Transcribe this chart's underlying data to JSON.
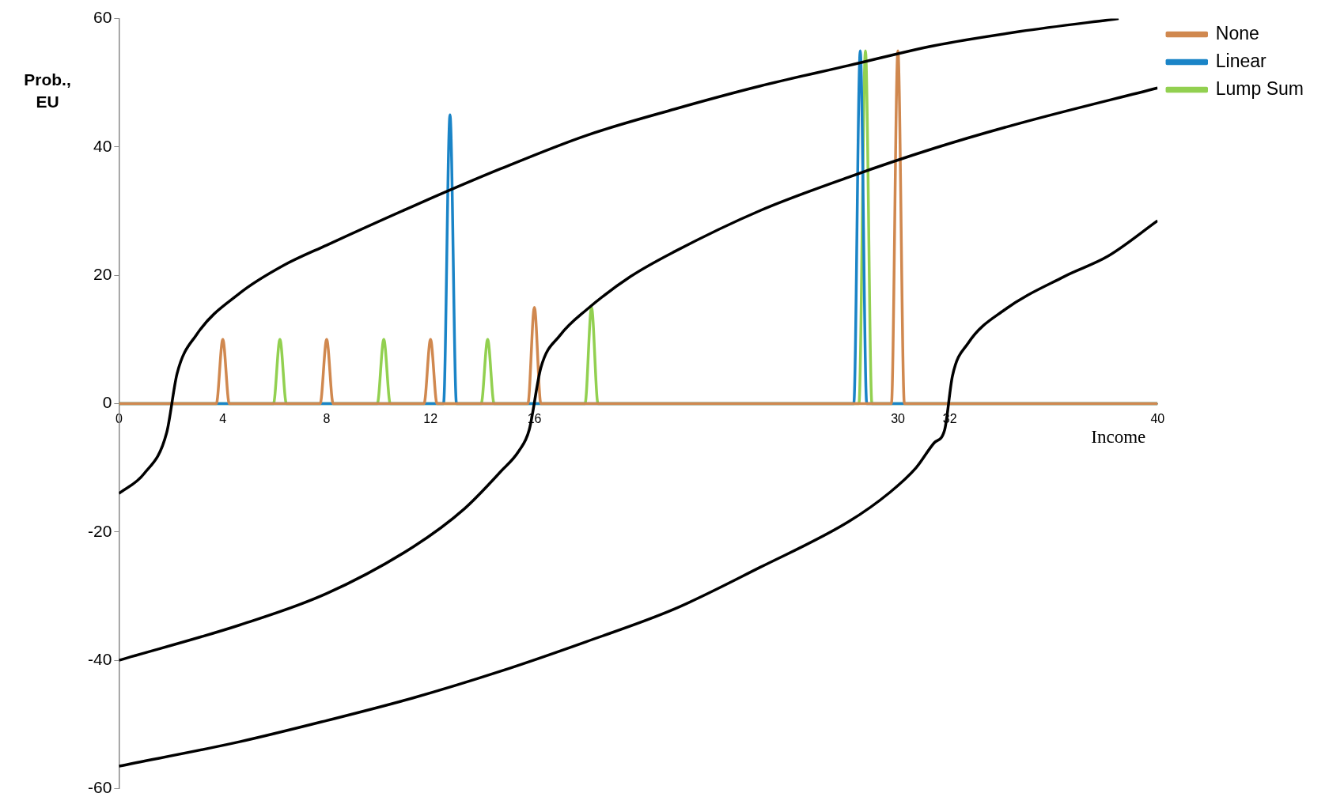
{
  "chart_data": {
    "type": "line",
    "xlabel": "Income",
    "ylabel": "Prob., EU",
    "xlim": [
      0,
      40
    ],
    "xticks": [
      0,
      4,
      8,
      12,
      16,
      30,
      32,
      40
    ],
    "ylim": [
      -60,
      60
    ],
    "yticks": [
      -60,
      -40,
      -20,
      0,
      20,
      40,
      60
    ],
    "grid": false,
    "legend": "right",
    "marker": "none",
    "series": [
      {
        "color": "#000000",
        "x": [
          0,
          0.97,
          1.84,
          2.24,
          2.98,
          4.65,
          6.32,
          8,
          11.34,
          14.7,
          18,
          21.4,
          24.7,
          28.1,
          31.4,
          34.7,
          38.1,
          38.5
        ],
        "values": [
          -14,
          -10.9,
          -4.5,
          4.7,
          10.7,
          17.2,
          21.5,
          24.7,
          30.8,
          36.6,
          41.8,
          45.9,
          49.5,
          52.7,
          55.8,
          58,
          59.8,
          60
        ]
      },
      {
        "color": "#000000",
        "x": [
          0,
          4.65,
          8,
          11.34,
          13.3,
          14.7,
          15.4,
          15.8,
          16.25,
          17,
          18,
          19.7,
          21.4,
          24.7,
          28.1,
          31.4,
          34.7,
          40
        ],
        "values": [
          -40,
          -34.5,
          -29.6,
          -22.3,
          -16.4,
          -10.6,
          -7.4,
          -4.1,
          5.6,
          10.7,
          14.6,
          19.8,
          23.7,
          30.1,
          35.3,
          39.8,
          43.7,
          49.2
        ]
      },
      {
        "color": "#000000",
        "x": [
          0,
          4.65,
          8,
          11.3,
          14.7,
          18,
          21.4,
          24.7,
          28.1,
          29.7,
          30.7,
          31.4,
          31.8,
          32.1,
          32.7,
          34.1,
          36.4,
          38.1,
          40
        ],
        "values": [
          -56.5,
          -52.7,
          -49.4,
          -45.9,
          -41.7,
          -37.1,
          -32,
          -25.5,
          -18.4,
          -13.8,
          -10,
          -6.1,
          -4.1,
          4.3,
          9.4,
          14.6,
          19.8,
          23,
          28.5
        ]
      },
      {
        "name": "None",
        "color": "#d0884f",
        "x": [
          0,
          3.75,
          4,
          4.25,
          7.75,
          8,
          8.25,
          11.75,
          12,
          12.25,
          15.75,
          16,
          16.25,
          29.75,
          30,
          30.25,
          40
        ],
        "values": [
          0,
          0,
          10,
          0,
          0,
          10,
          0,
          0,
          10,
          0,
          0,
          15,
          0,
          0,
          55,
          0,
          0
        ]
      },
      {
        "name": "Linear",
        "color": "#1a84c7",
        "x": [
          0,
          12.5,
          12.75,
          13,
          28.3,
          28.55,
          28.8,
          40
        ],
        "values": [
          0,
          0,
          45,
          0,
          0,
          55,
          0,
          0
        ]
      },
      {
        "name": "Lump Sum",
        "color": "#92d050",
        "x": [
          0,
          5.95,
          6.2,
          6.45,
          9.95,
          10.2,
          10.45,
          13.95,
          14.2,
          14.45,
          17.95,
          18.2,
          18.45,
          28.5,
          28.75,
          29,
          40
        ],
        "values": [
          0,
          0,
          10,
          0,
          0,
          10,
          0,
          0,
          10,
          0,
          0,
          15,
          0,
          0,
          55,
          0,
          0
        ]
      }
    ]
  }
}
